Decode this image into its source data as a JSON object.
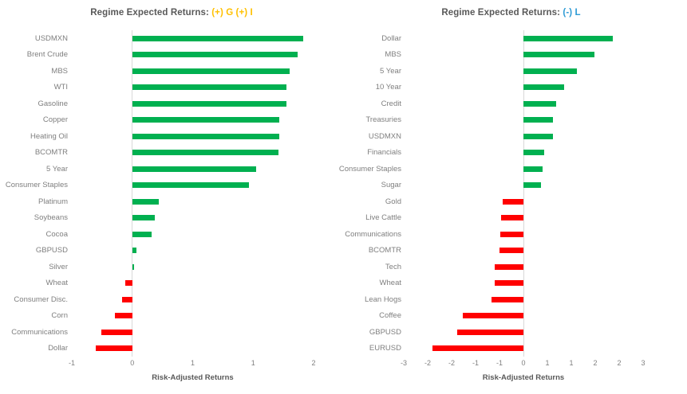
{
  "chart_data": [
    {
      "type": "bar",
      "orientation": "horizontal",
      "title_prefix": "Regime Expected Returns: ",
      "title_accent": "(+) G (+) I",
      "accent_color": "#FFC000",
      "xlabel": "Risk-Adjusted Returns",
      "categories": [
        "USDMXN",
        "Brent Crude",
        "MBS",
        "WTI",
        "Gasoline",
        "Copper",
        "Heating Oil",
        "BCOMTR",
        "5 Year",
        "Consumer Staples",
        "Platinum",
        "Soybeans",
        "Cocoa",
        "GBPUSD",
        "Silver",
        "Wheat",
        "Consumer Disc.",
        "Corn",
        "Communications",
        "Dollar"
      ],
      "values": [
        1.7,
        1.64,
        1.56,
        1.53,
        1.53,
        1.46,
        1.46,
        1.45,
        1.23,
        1.16,
        0.26,
        0.22,
        0.19,
        0.04,
        0.02,
        -0.07,
        -0.1,
        -0.17,
        -0.31,
        -0.36
      ],
      "axis": {
        "min": -0.6,
        "max": 1.8,
        "tick_values": [
          -0.6,
          0,
          0.6,
          1.2,
          1.8
        ],
        "tick_labels": [
          "-1",
          "0",
          "1",
          "1",
          "2"
        ]
      },
      "colors": {
        "positive": "#00B050",
        "negative": "#FF0000"
      },
      "grid": false,
      "legend": false
    },
    {
      "type": "bar",
      "orientation": "horizontal",
      "title_prefix": "Regime Expected Returns: ",
      "title_accent": "(-) L",
      "accent_color": "#2E9BD5",
      "xlabel": "Risk-Adjusted Returns",
      "categories": [
        "Dollar",
        "MBS",
        "5 Year",
        "10 Year",
        "Credit",
        "Treasuries",
        "USDMXN",
        "Financials",
        "Consumer Staples",
        "Sugar",
        "Gold",
        "Live Cattle",
        "Communications",
        "BCOMTR",
        "Tech",
        "Wheat",
        "Lean Hogs",
        "Coffee",
        "GBPUSD",
        "EURUSD"
      ],
      "values": [
        2.24,
        1.78,
        1.33,
        1.02,
        0.81,
        0.74,
        0.73,
        0.52,
        0.47,
        0.43,
        -0.53,
        -0.57,
        -0.58,
        -0.6,
        -0.72,
        -0.72,
        -0.81,
        -1.53,
        -1.66,
        -2.28
      ],
      "axis": {
        "min": -3,
        "max": 3,
        "tick_values": [
          -3,
          -2.4,
          -1.8,
          -1.2,
          -0.6,
          0,
          0.6,
          1.2,
          1.8,
          2.4,
          3
        ],
        "tick_labels": [
          "-3",
          "-2",
          "-2",
          "-1",
          "-1",
          "0",
          "1",
          "1",
          "2",
          "2",
          "3"
        ]
      },
      "colors": {
        "positive": "#00B050",
        "negative": "#FF0000"
      },
      "grid": false,
      "legend": false
    }
  ],
  "title_color": "#595959",
  "text_color": "#7F7F7F",
  "axis_line_color": "#D9D9D9"
}
